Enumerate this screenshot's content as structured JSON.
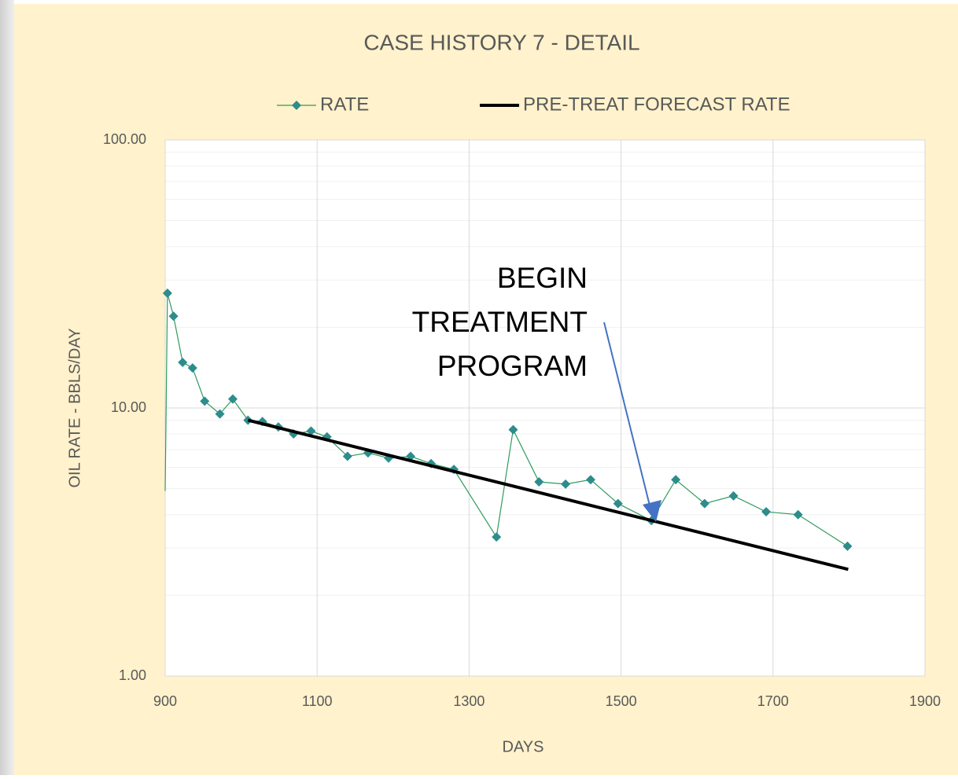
{
  "chart_data": {
    "type": "line",
    "title": "CASE HISTORY 7 - DETAIL",
    "x_label": "DAYS",
    "y_label": "OIL RATE - BBLS/DAY",
    "annotation": [
      "BEGIN",
      "TREATMENT",
      "PROGRAM"
    ],
    "xlim": [
      900,
      1900
    ],
    "xticks": [
      900,
      1100,
      1300,
      1500,
      1700,
      1900
    ],
    "ylim": [
      1,
      100
    ],
    "yticks": [
      {
        "value": 1,
        "label": "1.00"
      },
      {
        "value": 10,
        "label": "10.00"
      },
      {
        "value": 100,
        "label": "100.00"
      }
    ],
    "log_y": true,
    "grid": true,
    "minor_grid": true,
    "legend": "top",
    "series": [
      {
        "name": "RATE",
        "color": "#2e9b5e",
        "marker_color": "#2d8c8c",
        "marker": "diamond",
        "x": [
          900,
          903,
          911,
          923,
          936,
          952,
          972,
          989,
          1009,
          1028,
          1049,
          1069,
          1092,
          1113,
          1140,
          1167,
          1194,
          1223,
          1250,
          1280,
          1336,
          1358,
          1392,
          1427,
          1460,
          1496,
          1540,
          1572,
          1610,
          1648,
          1691,
          1733,
          1798
        ],
        "values": [
          4.9,
          26.8,
          22.0,
          14.8,
          14.1,
          10.6,
          9.5,
          10.8,
          9.0,
          8.9,
          8.5,
          8.0,
          8.2,
          7.8,
          6.6,
          6.8,
          6.5,
          6.6,
          6.2,
          5.9,
          3.3,
          8.3,
          5.3,
          5.2,
          5.4,
          4.4,
          3.8,
          5.4,
          4.4,
          4.7,
          4.1,
          4.0,
          3.05
        ]
      },
      {
        "name": "PRE-TREAT FORECAST RATE",
        "color": "#000000",
        "x": [
          1009,
          1799
        ],
        "values": [
          9.0,
          2.5
        ]
      }
    ]
  }
}
